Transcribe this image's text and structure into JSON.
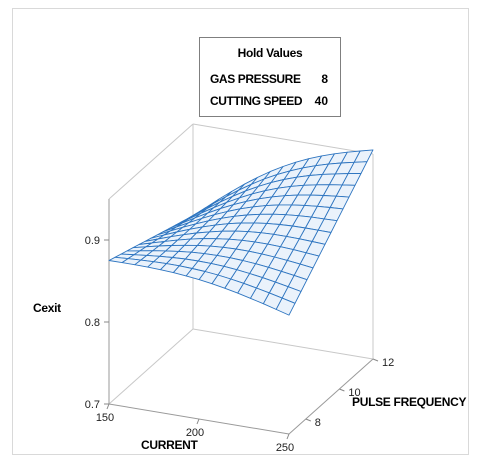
{
  "hold_values": {
    "title": "Hold Values",
    "rows": [
      {
        "label": "GAS PRESSURE",
        "value": "8"
      },
      {
        "label": "CUTTING SPEED",
        "value": "40"
      }
    ]
  },
  "chart_data": {
    "type": "surface",
    "title": "",
    "xlabel": "CURRENT",
    "ylabel": "PULSE FREQUENCY",
    "zlabel": "Cexit",
    "x_ticks": [
      "150",
      "200",
      "250"
    ],
    "y_ticks": [
      "8",
      "10",
      "12"
    ],
    "z_ticks": [
      "0.7",
      "0.8",
      "0.9"
    ],
    "x_range": [
      150,
      250
    ],
    "y_range": [
      7,
      12
    ],
    "z_range": [
      0.7,
      0.95
    ],
    "surface_color": "#2e75c0",
    "grid": false,
    "corners": {
      "current_150_pf_12": 0.838,
      "current_150_pf_7": 0.875,
      "current_250_pf_12": 0.955,
      "current_250_pf_7": 0.845
    }
  }
}
